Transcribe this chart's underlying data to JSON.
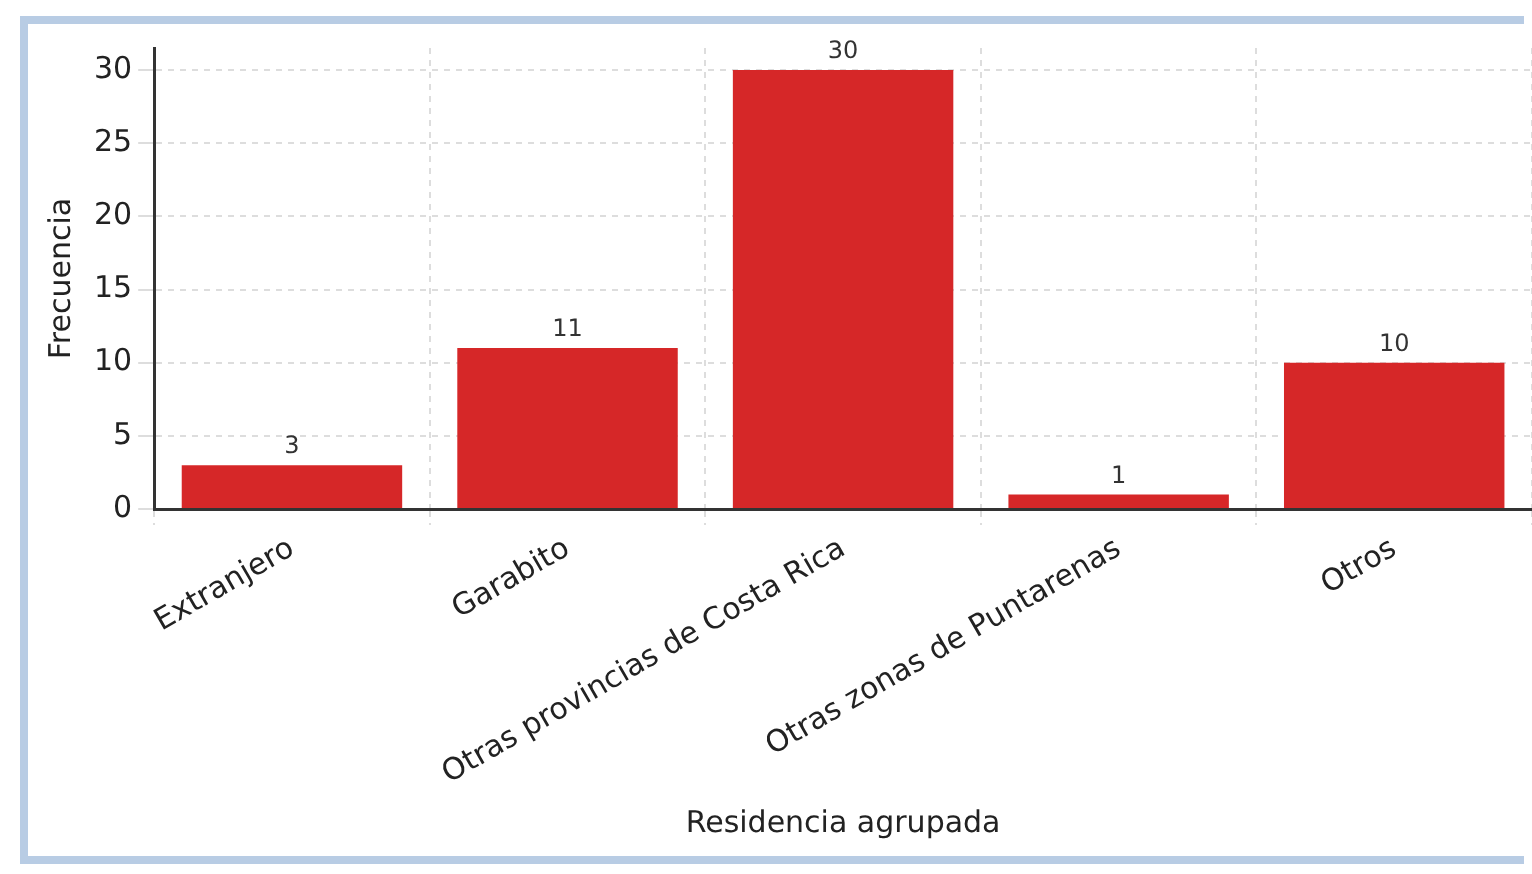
{
  "chart_data": {
    "type": "bar",
    "xlabel": "Residencia agrupada",
    "ylabel": "Frecuencia",
    "categories": [
      "Extranjero",
      "Garabito",
      "Otras provincias de Costa Rica",
      "Otras zonas de Puntarenas",
      "Otros"
    ],
    "values": [
      3,
      11,
      30,
      1,
      10
    ],
    "color": "#d62728",
    "ylim": [
      0,
      31.5
    ],
    "yticks": [
      0,
      5,
      10,
      15,
      20,
      25,
      30
    ],
    "grid": true,
    "data_labels": true
  }
}
